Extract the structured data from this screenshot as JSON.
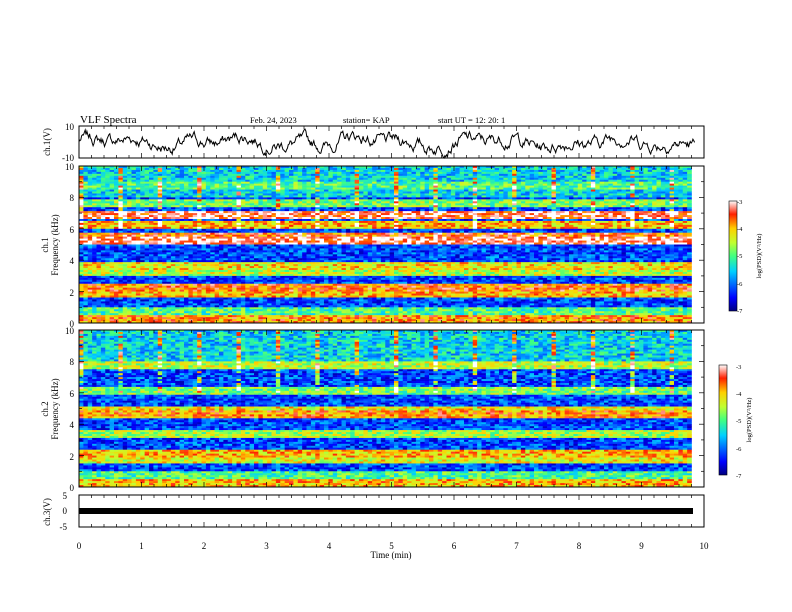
{
  "header": {
    "title": "VLF Spectra",
    "date": "Feb. 24, 2023",
    "station": "station= KAP",
    "start": "start  UT =   12: 20: 1"
  },
  "chart_data": [
    {
      "type": "line",
      "id": "ch1-waveform",
      "ylabel": "ch.1(V)",
      "ylim": [
        -10,
        10
      ],
      "y_ticks": [
        "10",
        "-10"
      ],
      "xlim": [
        0,
        10
      ],
      "description_values": "noisy waveform oscillating roughly between -5 and 8 V across 0-9.8 min"
    },
    {
      "type": "heatmap",
      "id": "ch1-spectrogram",
      "ylabel": "ch.1\nFrequency (kHz)",
      "ylabel_line1": "ch.1",
      "ylabel_line2": "Frequency (kHz)",
      "ylim": [
        0,
        10
      ],
      "y_ticks": [
        "0",
        "2",
        "4",
        "6",
        "8",
        "10"
      ],
      "xlim": [
        0,
        9.8
      ],
      "colorbar": {
        "label": "log(PSD)(V²/Hz)",
        "range": [
          -7,
          -3
        ],
        "ticks": [
          "-3",
          "-4",
          "-5",
          "-6",
          "-7"
        ]
      },
      "bands_khz": [
        {
          "f": 0.3,
          "level": -3.8
        },
        {
          "f": 1.9,
          "level": -4.0
        },
        {
          "f": 2.3,
          "level": -3.7
        },
        {
          "f": 3.3,
          "level": -4.5
        },
        {
          "f": 3.6,
          "level": -4.2
        },
        {
          "f": 5.2,
          "level": -3.2
        },
        {
          "f": 5.5,
          "level": -3.6
        },
        {
          "f": 6.3,
          "level": -4.0
        },
        {
          "f": 6.9,
          "level": -3.3
        },
        {
          "f": 7.6,
          "level": -4.8
        },
        {
          "f": 8.8,
          "level": -5.0
        }
      ]
    },
    {
      "type": "heatmap",
      "id": "ch2-spectrogram",
      "ylabel": "ch.2\nFrequency (kHz)",
      "ylabel_line1": "ch.2",
      "ylabel_line2": "Frequency (kHz)",
      "ylim": [
        0,
        10
      ],
      "y_ticks": [
        "0",
        "2",
        "4",
        "6",
        "8",
        "10"
      ],
      "xlim": [
        0,
        9.8
      ],
      "colorbar": {
        "label": "log(PSD)(V²/Hz)",
        "range": [
          -7,
          -3
        ],
        "ticks": [
          "-3",
          "-4",
          "-5",
          "-6",
          "-7"
        ]
      },
      "bands_khz": [
        {
          "f": 0.3,
          "level": -4.0
        },
        {
          "f": 1.8,
          "level": -4.3
        },
        {
          "f": 2.1,
          "level": -4.0
        },
        {
          "f": 3.4,
          "level": -4.6
        },
        {
          "f": 4.6,
          "level": -3.8
        },
        {
          "f": 4.9,
          "level": -4.2
        },
        {
          "f": 6.1,
          "level": -4.8
        },
        {
          "f": 7.7,
          "level": -4.5
        }
      ]
    },
    {
      "type": "line",
      "id": "ch3-waveform",
      "ylabel": "ch.3(V)",
      "ylim": [
        -5,
        5
      ],
      "y_ticks": [
        "5",
        "0",
        "-5"
      ],
      "xlim": [
        0,
        10
      ],
      "x_ticks": [
        "0",
        "1",
        "2",
        "3",
        "4",
        "5",
        "6",
        "7",
        "8",
        "9",
        "10"
      ],
      "xlabel": "Time (min)",
      "values_note": "flat trace at about -1 V from 0 to 9.8 min",
      "y_constant": -1
    }
  ]
}
